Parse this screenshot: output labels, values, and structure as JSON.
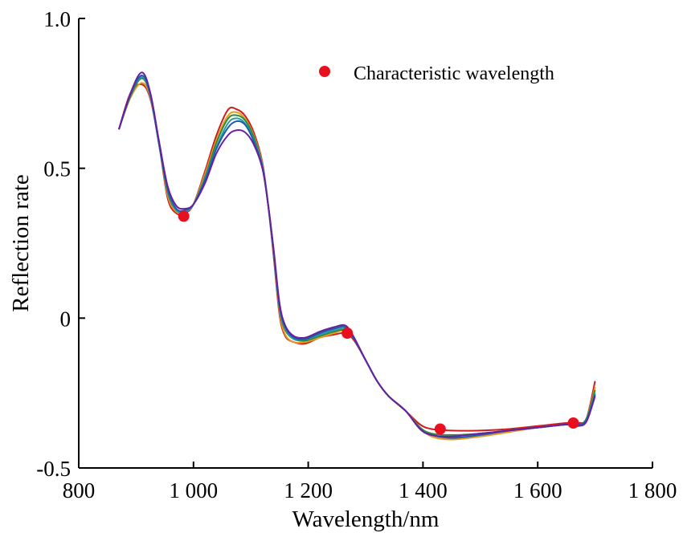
{
  "chart_data": {
    "type": "line",
    "title": "",
    "xlabel": "Wavelength/nm",
    "ylabel": "Reflection rate",
    "xlim": [
      800,
      1800
    ],
    "ylim": [
      -0.5,
      1.0
    ],
    "x_ticks": [
      800,
      1000,
      1200,
      1400,
      1600,
      1800
    ],
    "x_tick_labels": [
      "800",
      "1 000",
      "1 200",
      "1 400",
      "1 600",
      "1 800"
    ],
    "y_ticks": [
      -0.5,
      0,
      0.5,
      1.0
    ],
    "y_tick_labels": [
      "-0.5",
      "0",
      "0.5",
      "1.0"
    ],
    "grid": false,
    "legend": {
      "position": "top-right",
      "entries": [
        {
          "label": "Characteristic wavelength",
          "marker": "circle",
          "color": "#e8101e"
        }
      ]
    },
    "x": [
      870,
      890,
      910,
      925,
      940,
      955,
      970,
      985,
      1000,
      1020,
      1040,
      1060,
      1075,
      1090,
      1105,
      1120,
      1130,
      1140,
      1150,
      1160,
      1175,
      1195,
      1220,
      1245,
      1265,
      1280,
      1300,
      1320,
      1340,
      1370,
      1395,
      1415,
      1450,
      1500,
      1550,
      1600,
      1650,
      1670,
      1685,
      1700
    ],
    "base_curve": [
      0.63,
      0.74,
      0.8,
      0.74,
      0.58,
      0.42,
      0.36,
      0.355,
      0.38,
      0.47,
      0.58,
      0.655,
      0.672,
      0.655,
      0.6,
      0.51,
      0.38,
      0.21,
      0.03,
      -0.04,
      -0.07,
      -0.075,
      -0.06,
      -0.045,
      -0.04,
      -0.07,
      -0.14,
      -0.21,
      -0.26,
      -0.31,
      -0.365,
      -0.385,
      -0.39,
      -0.385,
      -0.375,
      -0.365,
      -0.355,
      -0.355,
      -0.335,
      -0.24
    ],
    "series": [
      {
        "color": "#d01c1c",
        "offsets": [
          0.0,
          0.01,
          -0.02,
          -0.01,
          0.0,
          -0.02,
          -0.01,
          -0.005,
          0.0,
          0.02,
          0.03,
          0.04,
          0.025,
          0.02,
          0.02,
          0.01,
          0.0,
          -0.01,
          -0.02,
          -0.02,
          -0.01,
          -0.01,
          -0.005,
          -0.01,
          -0.01,
          -0.005,
          0.0,
          0.0,
          0.0,
          0.0,
          0.01,
          0.015,
          0.015,
          0.01,
          0.005,
          0.005,
          0.005,
          0.005,
          0.0,
          0.03
        ]
      },
      {
        "color": "#e89a1c",
        "offsets": [
          0.0,
          -0.005,
          -0.015,
          -0.005,
          0.0,
          -0.01,
          -0.005,
          0.0,
          0.0,
          0.01,
          0.015,
          0.02,
          0.015,
          0.01,
          0.01,
          0.005,
          0.0,
          0.0,
          -0.01,
          -0.015,
          -0.01,
          -0.005,
          -0.005,
          -0.005,
          0.0,
          0.0,
          0.0,
          0.0,
          0.0,
          0.0,
          0.0,
          -0.01,
          -0.015,
          -0.01,
          -0.005,
          0.0,
          0.0,
          0.0,
          0.0,
          0.01
        ]
      },
      {
        "color": "#2e8b3a",
        "offsets": [
          0.0,
          0.0,
          0.0,
          0.0,
          0.0,
          0.0,
          0.0,
          0.0,
          0.0,
          0.0,
          0.005,
          0.01,
          0.005,
          0.005,
          0.005,
          0.0,
          0.0,
          0.0,
          0.0,
          0.0,
          0.0,
          0.0,
          0.0,
          0.0,
          0.0,
          0.0,
          0.0,
          0.0,
          0.0,
          0.0,
          0.0,
          0.0,
          0.0,
          0.0,
          0.0,
          0.0,
          0.0,
          0.0,
          0.0,
          0.0
        ]
      },
      {
        "color": "#2a9ab0",
        "offsets": [
          0.0,
          0.005,
          0.005,
          0.0,
          0.0,
          0.005,
          0.0,
          0.0,
          0.0,
          -0.005,
          -0.01,
          -0.005,
          -0.005,
          -0.005,
          -0.005,
          0.0,
          0.0,
          0.005,
          0.005,
          0.005,
          0.0,
          0.005,
          0.005,
          0.005,
          0.005,
          0.0,
          0.0,
          0.0,
          0.0,
          0.0,
          -0.005,
          -0.005,
          -0.005,
          0.0,
          0.0,
          0.0,
          0.0,
          0.0,
          -0.005,
          -0.01
        ]
      },
      {
        "color": "#1c5fa8",
        "offsets": [
          0.0,
          0.005,
          0.01,
          0.005,
          0.0,
          0.01,
          0.005,
          0.005,
          0.0,
          -0.01,
          -0.015,
          -0.02,
          -0.015,
          -0.01,
          -0.01,
          -0.005,
          0.0,
          0.01,
          0.01,
          0.01,
          0.005,
          0.005,
          0.01,
          0.01,
          0.01,
          0.0,
          0.0,
          0.0,
          0.0,
          0.0,
          -0.005,
          -0.005,
          -0.01,
          -0.005,
          0.0,
          0.0,
          0.0,
          0.0,
          -0.005,
          -0.015
        ]
      },
      {
        "color": "#6a1fa0",
        "offsets": [
          0.0,
          0.01,
          0.02,
          0.01,
          0.01,
          0.02,
          0.015,
          0.01,
          0.0,
          -0.02,
          -0.03,
          -0.045,
          -0.045,
          -0.035,
          -0.02,
          -0.01,
          0.0,
          0.015,
          0.02,
          0.015,
          0.01,
          0.01,
          0.015,
          0.015,
          0.015,
          0.005,
          0.0,
          0.0,
          0.0,
          0.0,
          -0.005,
          -0.005,
          -0.005,
          0.0,
          0.0,
          0.0,
          0.0,
          -0.005,
          -0.01,
          -0.02
        ]
      }
    ],
    "characteristic_points": [
      {
        "x": 983,
        "y": 0.34
      },
      {
        "x": 1268,
        "y": -0.05
      },
      {
        "x": 1430,
        "y": -0.37
      },
      {
        "x": 1662,
        "y": -0.35
      }
    ]
  }
}
